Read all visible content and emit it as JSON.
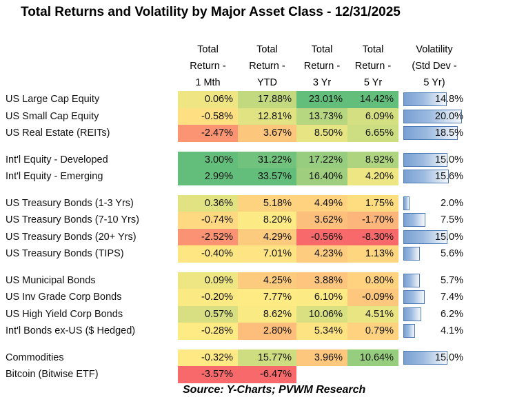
{
  "title": "Total Returns and Volatility by Major Asset Class - 12/31/2025",
  "source_note": "Source:  Y-Charts; PVWM Research",
  "columns": [
    {
      "lines": [
        "Total",
        "Return -",
        "1 Mth"
      ]
    },
    {
      "lines": [
        "Total",
        "Return -",
        "YTD"
      ]
    },
    {
      "lines": [
        "Total",
        "Return -",
        "3 Yr"
      ]
    },
    {
      "lines": [
        "Total",
        "Return -",
        "5 Yr"
      ]
    },
    {
      "lines": [
        "Volatility",
        "(Std Dev -",
        "5 Yr)"
      ]
    }
  ],
  "heatmap_scale": {
    "min_color": "#F8696B",
    "mid_color": "#FFEB84",
    "max_color": "#63BE7B"
  },
  "volatility_bar": {
    "max": 20,
    "fill_left": "#79A0D3",
    "fill_right": "#F2F6FB",
    "border": "#4D7AB5"
  },
  "groups": [
    {
      "rows": [
        {
          "label": "US Large Cap Equity",
          "cells": [
            {
              "text": "0.06%",
              "bg": "#EFE683"
            },
            {
              "text": "17.88%",
              "bg": "#C2D980"
            },
            {
              "text": "23.01%",
              "bg": "#63BE7B"
            },
            {
              "text": "14.42%",
              "bg": "#63BE7B"
            }
          ],
          "volatility": {
            "text": "14.8%",
            "value": 14.8
          }
        },
        {
          "label": "US Small Cap Equity",
          "cells": [
            {
              "text": "-0.58%",
              "bg": "#FEDF82"
            },
            {
              "text": "12.81%",
              "bg": "#E1E282"
            },
            {
              "text": "13.73%",
              "bg": "#B7D680"
            },
            {
              "text": "6.09%",
              "bg": "#D4DF82"
            }
          ],
          "volatility": {
            "text": "20.0%",
            "value": 20.0
          }
        },
        {
          "label": "US Real Estate (REITs)",
          "cells": [
            {
              "text": "-2.47%",
              "bg": "#FA9473"
            },
            {
              "text": "3.67%",
              "bg": "#FDC67D"
            },
            {
              "text": "8.50%",
              "bg": "#E6E483"
            },
            {
              "text": "6.65%",
              "bg": "#CDDD81"
            }
          ],
          "volatility": {
            "text": "18.5%",
            "value": 18.5
          }
        }
      ]
    },
    {
      "rows": [
        {
          "label": "Int'l Equity - Developed",
          "cells": [
            {
              "text": "3.00%",
              "bg": "#63BE7B"
            },
            {
              "text": "31.22%",
              "bg": "#71C27C"
            },
            {
              "text": "17.22%",
              "bg": "#97CD7E"
            },
            {
              "text": "8.92%",
              "bg": "#AED47F"
            }
          ],
          "volatility": {
            "text": "15.0%",
            "value": 15.0
          }
        },
        {
          "label": "Int'l Equity - Emerging",
          "cells": [
            {
              "text": "2.99%",
              "bg": "#64BE7B"
            },
            {
              "text": "33.57%",
              "bg": "#63BE7B"
            },
            {
              "text": "16.40%",
              "bg": "#9FCF7E"
            },
            {
              "text": "4.20%",
              "bg": "#EEE683"
            }
          ],
          "volatility": {
            "text": "15.6%",
            "value": 15.6
          }
        }
      ]
    },
    {
      "rows": [
        {
          "label": "US Treasury Bonds (1-3 Yrs)",
          "cells": [
            {
              "text": "0.36%",
              "bg": "#E1E282"
            },
            {
              "text": "5.18%",
              "bg": "#FED380"
            },
            {
              "text": "4.49%",
              "bg": "#FED27F"
            },
            {
              "text": "1.75%",
              "bg": "#FEDD81"
            }
          ],
          "volatility": {
            "text": "2.0%",
            "value": 2.0
          }
        },
        {
          "label": "US Treasury Bonds (7-10 Yrs)",
          "cells": [
            {
              "text": "-0.74%",
              "bg": "#FED981"
            },
            {
              "text": "8.20%",
              "bg": "#FCEA84"
            },
            {
              "text": "3.62%",
              "bg": "#FDC07C"
            },
            {
              "text": "-1.70%",
              "bg": "#FCB57A"
            }
          ],
          "volatility": {
            "text": "7.5%",
            "value": 7.5
          }
        },
        {
          "label": "US Treasury Bonds (20+ Yrs)",
          "cells": [
            {
              "text": "-2.52%",
              "bg": "#FA9273"
            },
            {
              "text": "4.29%",
              "bg": "#FDCB7E"
            },
            {
              "text": "-0.56%",
              "bg": "#F8696B"
            },
            {
              "text": "-8.30%",
              "bg": "#F8696B"
            }
          ],
          "volatility": {
            "text": "15.0%",
            "value": 15.0
          }
        },
        {
          "label": "US Treasury Bonds (TIPS)",
          "cells": [
            {
              "text": "-0.40%",
              "bg": "#FEE683"
            },
            {
              "text": "7.01%",
              "bg": "#FEE483"
            },
            {
              "text": "4.23%",
              "bg": "#FDCC7E"
            },
            {
              "text": "1.13%",
              "bg": "#FED680"
            }
          ],
          "volatility": {
            "text": "5.6%",
            "value": 5.6
          }
        }
      ]
    },
    {
      "rows": [
        {
          "label": "US Municipal Bonds",
          "cells": [
            {
              "text": "0.09%",
              "bg": "#EDE683"
            },
            {
              "text": "4.25%",
              "bg": "#FDCB7E"
            },
            {
              "text": "3.88%",
              "bg": "#FDC57D"
            },
            {
              "text": "0.80%",
              "bg": "#FED27F"
            }
          ],
          "volatility": {
            "text": "5.7%",
            "value": 5.7
          }
        },
        {
          "label": "US Inv Grade Corp Bonds",
          "cells": [
            {
              "text": "-0.20%",
              "bg": "#FBEA84"
            },
            {
              "text": "7.77%",
              "bg": "#FFEB84"
            },
            {
              "text": "6.10%",
              "bg": "#FCEA84"
            },
            {
              "text": "-0.09%",
              "bg": "#FDC87D"
            }
          ],
          "volatility": {
            "text": "7.4%",
            "value": 7.4
          }
        },
        {
          "label": "US High Yield Corp Bonds",
          "cells": [
            {
              "text": "0.57%",
              "bg": "#D7DF82"
            },
            {
              "text": "8.62%",
              "bg": "#F9EA84"
            },
            {
              "text": "10.06%",
              "bg": "#D8E082"
            },
            {
              "text": "4.51%",
              "bg": "#EAE583"
            }
          ],
          "volatility": {
            "text": "6.2%",
            "value": 6.2
          }
        },
        {
          "label": "Int'l Bonds ex-US ($ Hedged)",
          "cells": [
            {
              "text": "-0.28%",
              "bg": "#FFEB84"
            },
            {
              "text": "2.80%",
              "bg": "#FDBE7B"
            },
            {
              "text": "5.34%",
              "bg": "#FEE383"
            },
            {
              "text": "0.79%",
              "bg": "#FED27F"
            }
          ],
          "volatility": {
            "text": "4.1%",
            "value": 4.1
          }
        }
      ]
    },
    {
      "rows": [
        {
          "label": "Commodities",
          "cells": [
            {
              "text": "-0.32%",
              "bg": "#FEE984"
            },
            {
              "text": "15.77%",
              "bg": "#CFDD81"
            },
            {
              "text": "3.96%",
              "bg": "#FDC77D"
            },
            {
              "text": "10.64%",
              "bg": "#97CD7E"
            }
          ],
          "volatility": {
            "text": "15.0%",
            "value": 15.0
          }
        },
        {
          "label": "Bitcoin (Bitwise ETF)",
          "cells": [
            {
              "text": "-3.57%",
              "bg": "#F8696B"
            },
            {
              "text": "-6.47%",
              "bg": "#F8696B"
            },
            null,
            null
          ],
          "volatility": null
        }
      ]
    }
  ],
  "chart_data": {
    "type": "table",
    "title": "Total Returns and Volatility by Major Asset Class - 12/31/2025",
    "columns": [
      "Total Return - 1 Mth",
      "Total Return - YTD",
      "Total Return - 3 Yr",
      "Total Return - 5 Yr",
      "Volatility (Std Dev - 5 Yr)"
    ],
    "row_labels": [
      "US Large Cap Equity",
      "US Small Cap Equity",
      "US Real Estate (REITs)",
      "Int'l Equity - Developed",
      "Int'l Equity - Emerging",
      "US Treasury Bonds (1-3 Yrs)",
      "US Treasury Bonds (7-10 Yrs)",
      "US Treasury Bonds (20+ Yrs)",
      "US Treasury Bonds (TIPS)",
      "US Municipal Bonds",
      "US Inv Grade Corp Bonds",
      "US High Yield Corp Bonds",
      "Int'l Bonds ex-US ($ Hedged)",
      "Commodities",
      "Bitcoin (Bitwise ETF)"
    ],
    "values": [
      [
        0.06,
        17.88,
        23.01,
        14.42,
        14.8
      ],
      [
        -0.58,
        12.81,
        13.73,
        6.09,
        20.0
      ],
      [
        -2.47,
        3.67,
        8.5,
        6.65,
        18.5
      ],
      [
        3.0,
        31.22,
        17.22,
        8.92,
        15.0
      ],
      [
        2.99,
        33.57,
        16.4,
        4.2,
        15.6
      ],
      [
        0.36,
        5.18,
        4.49,
        1.75,
        2.0
      ],
      [
        -0.74,
        8.2,
        3.62,
        -1.7,
        7.5
      ],
      [
        -2.52,
        4.29,
        -0.56,
        -8.3,
        15.0
      ],
      [
        -0.4,
        7.01,
        4.23,
        1.13,
        5.6
      ],
      [
        0.09,
        4.25,
        3.88,
        0.8,
        5.7
      ],
      [
        -0.2,
        7.77,
        6.1,
        -0.09,
        7.4
      ],
      [
        0.57,
        8.62,
        10.06,
        4.51,
        6.2
      ],
      [
        -0.28,
        2.8,
        5.34,
        0.79,
        4.1
      ],
      [
        -0.32,
        15.77,
        3.96,
        10.64,
        15.0
      ],
      [
        -3.57,
        -6.47,
        null,
        null,
        null
      ]
    ],
    "style_notes": "return cells use red-yellow-green heatmap per column; volatility rendered as blue gradient data bars scaled 0-20",
    "source": "Source:  Y-Charts; PVWM Research"
  }
}
